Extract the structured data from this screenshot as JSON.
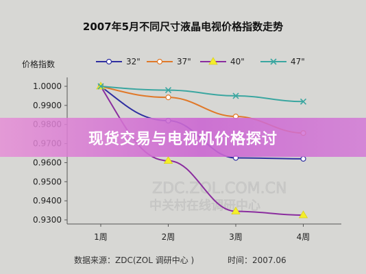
{
  "chart_data": {
    "type": "line",
    "title": "2007年5月不同尺寸液晶电视价格指数走势",
    "ylabel": "价格指数",
    "xlabel": "",
    "categories": [
      "1周",
      "2周",
      "3周",
      "4周"
    ],
    "ylim": [
      0.93,
      1.0
    ],
    "yticks": [
      "1.0000",
      "0.9900",
      "0.9800",
      "0.9700",
      "0.9600",
      "0.9500",
      "0.9400",
      "0.9300"
    ],
    "legend_position": "top",
    "series": [
      {
        "name": "32\"",
        "values": [
          1.0,
          0.982,
          0.9625,
          0.962
        ],
        "color": "#2e2ea0",
        "marker": "circle"
      },
      {
        "name": "37\"",
        "values": [
          1.0,
          0.9942,
          0.9842,
          0.9755
        ],
        "color": "#e07828",
        "marker": "circle"
      },
      {
        "name": "40\"",
        "values": [
          1.0,
          0.961,
          0.9345,
          0.9325
        ],
        "color": "#8a2c9e",
        "marker": "triangle"
      },
      {
        "name": "47\"",
        "values": [
          1.0,
          0.998,
          0.995,
          0.992
        ],
        "color": "#3aa6a0",
        "marker": "x"
      }
    ],
    "grid": false
  },
  "footer": {
    "source": "数据来源：ZDC(ZOL 调研中心 )",
    "time": "时间：2007.06"
  },
  "watermark": {
    "line1": "ZDC.ZOL.COM.CN",
    "line2": "中关村在线调研中心"
  },
  "banner": {
    "text": "现货交易与电视机价格探讨"
  }
}
